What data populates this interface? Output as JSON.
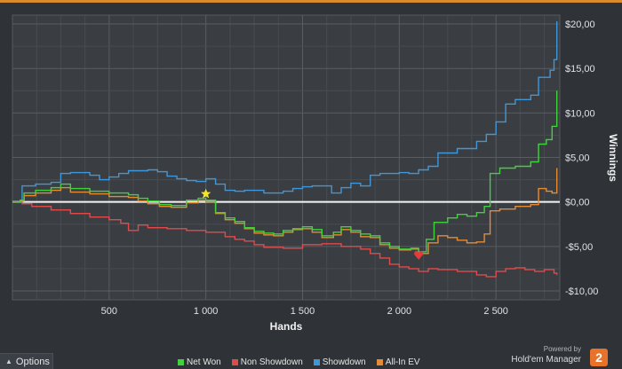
{
  "chart_data": {
    "type": "line",
    "xlabel": "Hands",
    "ylabel": "Winnings",
    "xlim": [
      0,
      2830
    ],
    "ylim": [
      -11,
      21
    ],
    "x_ticks": [
      500,
      1000,
      1500,
      2000,
      2500
    ],
    "x_tick_labels": [
      "500",
      "1 000",
      "1 500",
      "2 000",
      "2 500"
    ],
    "y_ticks": [
      20,
      15,
      10,
      5,
      0,
      -5,
      -10
    ],
    "y_tick_labels": [
      "$20,00",
      "$15,00",
      "$10,00",
      "$5,00",
      "$0,00",
      "-$5,00",
      "-$10,00"
    ],
    "grid": true,
    "series": [
      {
        "name": "Net Won",
        "color": "#3fd23a",
        "points": [
          [
            0,
            0
          ],
          [
            40,
            0.2
          ],
          [
            60,
            1.0
          ],
          [
            120,
            1.3
          ],
          [
            200,
            1.6
          ],
          [
            250,
            2.0
          ],
          [
            300,
            1.5
          ],
          [
            400,
            1.2
          ],
          [
            500,
            1.0
          ],
          [
            600,
            0.8
          ],
          [
            650,
            0.4
          ],
          [
            700,
            0.1
          ],
          [
            760,
            -0.3
          ],
          [
            820,
            -0.4
          ],
          [
            900,
            0.2
          ],
          [
            960,
            0.4
          ],
          [
            1000,
            0.2
          ],
          [
            1050,
            -1.2
          ],
          [
            1100,
            -1.8
          ],
          [
            1150,
            -2.2
          ],
          [
            1200,
            -2.9
          ],
          [
            1250,
            -3.3
          ],
          [
            1300,
            -3.5
          ],
          [
            1350,
            -3.6
          ],
          [
            1400,
            -3.2
          ],
          [
            1450,
            -3.0
          ],
          [
            1500,
            -2.8
          ],
          [
            1550,
            -3.1
          ],
          [
            1600,
            -3.8
          ],
          [
            1660,
            -3.4
          ],
          [
            1700,
            -2.8
          ],
          [
            1750,
            -3.2
          ],
          [
            1800,
            -3.6
          ],
          [
            1850,
            -3.8
          ],
          [
            1900,
            -4.6
          ],
          [
            1950,
            -5.0
          ],
          [
            2000,
            -5.3
          ],
          [
            2060,
            -5.2
          ],
          [
            2100,
            -5.6
          ],
          [
            2140,
            -4.2
          ],
          [
            2180,
            -2.3
          ],
          [
            2250,
            -1.8
          ],
          [
            2300,
            -1.4
          ],
          [
            2350,
            -1.6
          ],
          [
            2400,
            -1.2
          ],
          [
            2440,
            -0.5
          ],
          [
            2470,
            3.2
          ],
          [
            2520,
            3.8
          ],
          [
            2600,
            4.0
          ],
          [
            2680,
            4.5
          ],
          [
            2720,
            6.5
          ],
          [
            2760,
            7.0
          ],
          [
            2790,
            8.5
          ],
          [
            2815,
            12.5
          ]
        ]
      },
      {
        "name": "Non Showdown",
        "color": "#e24a4a",
        "points": [
          [
            0,
            0
          ],
          [
            50,
            -0.2
          ],
          [
            100,
            -0.5
          ],
          [
            200,
            -0.9
          ],
          [
            300,
            -1.3
          ],
          [
            400,
            -1.7
          ],
          [
            500,
            -2.0
          ],
          [
            560,
            -2.4
          ],
          [
            600,
            -3.2
          ],
          [
            650,
            -2.6
          ],
          [
            700,
            -2.9
          ],
          [
            800,
            -3.0
          ],
          [
            900,
            -3.2
          ],
          [
            1000,
            -3.4
          ],
          [
            1100,
            -3.9
          ],
          [
            1150,
            -4.2
          ],
          [
            1200,
            -4.4
          ],
          [
            1250,
            -4.8
          ],
          [
            1300,
            -5.1
          ],
          [
            1400,
            -5.2
          ],
          [
            1500,
            -4.8
          ],
          [
            1600,
            -4.7
          ],
          [
            1700,
            -5.0
          ],
          [
            1800,
            -5.3
          ],
          [
            1850,
            -5.8
          ],
          [
            1900,
            -6.3
          ],
          [
            1950,
            -7.0
          ],
          [
            2000,
            -7.3
          ],
          [
            2050,
            -7.5
          ],
          [
            2100,
            -7.8
          ],
          [
            2150,
            -7.5
          ],
          [
            2200,
            -7.6
          ],
          [
            2300,
            -7.8
          ],
          [
            2400,
            -8.2
          ],
          [
            2450,
            -8.4
          ],
          [
            2500,
            -7.8
          ],
          [
            2550,
            -7.5
          ],
          [
            2600,
            -7.4
          ],
          [
            2650,
            -7.6
          ],
          [
            2700,
            -7.8
          ],
          [
            2750,
            -7.6
          ],
          [
            2800,
            -8.0
          ],
          [
            2815,
            -8.2
          ]
        ]
      },
      {
        "name": "Showdown",
        "color": "#3f96d8",
        "points": [
          [
            0,
            0
          ],
          [
            50,
            1.8
          ],
          [
            120,
            2.0
          ],
          [
            200,
            2.2
          ],
          [
            250,
            3.2
          ],
          [
            300,
            3.3
          ],
          [
            400,
            3.0
          ],
          [
            450,
            2.5
          ],
          [
            500,
            2.8
          ],
          [
            550,
            3.2
          ],
          [
            600,
            3.5
          ],
          [
            700,
            3.6
          ],
          [
            750,
            3.4
          ],
          [
            800,
            2.9
          ],
          [
            850,
            2.6
          ],
          [
            900,
            2.4
          ],
          [
            950,
            2.3
          ],
          [
            1000,
            2.6
          ],
          [
            1050,
            2.0
          ],
          [
            1100,
            1.3
          ],
          [
            1150,
            1.2
          ],
          [
            1200,
            1.3
          ],
          [
            1300,
            1.0
          ],
          [
            1400,
            1.2
          ],
          [
            1450,
            1.5
          ],
          [
            1500,
            1.7
          ],
          [
            1550,
            1.8
          ],
          [
            1600,
            1.8
          ],
          [
            1650,
            1.0
          ],
          [
            1700,
            1.6
          ],
          [
            1750,
            2.1
          ],
          [
            1800,
            1.8
          ],
          [
            1850,
            3.0
          ],
          [
            1900,
            3.2
          ],
          [
            2000,
            3.3
          ],
          [
            2050,
            3.2
          ],
          [
            2100,
            3.6
          ],
          [
            2150,
            4.0
          ],
          [
            2200,
            5.5
          ],
          [
            2300,
            6.0
          ],
          [
            2400,
            6.8
          ],
          [
            2450,
            7.6
          ],
          [
            2500,
            9.0
          ],
          [
            2550,
            11.0
          ],
          [
            2600,
            11.5
          ],
          [
            2680,
            12.0
          ],
          [
            2720,
            14.0
          ],
          [
            2780,
            14.8
          ],
          [
            2800,
            16.0
          ],
          [
            2815,
            20.3
          ]
        ]
      },
      {
        "name": "All-In EV",
        "color": "#e68b32",
        "points": [
          [
            0,
            0
          ],
          [
            40,
            0.1
          ],
          [
            60,
            0.7
          ],
          [
            120,
            1.0
          ],
          [
            200,
            1.3
          ],
          [
            250,
            1.6
          ],
          [
            300,
            1.1
          ],
          [
            400,
            0.9
          ],
          [
            500,
            0.6
          ],
          [
            600,
            0.5
          ],
          [
            650,
            0.1
          ],
          [
            700,
            -0.2
          ],
          [
            760,
            -0.5
          ],
          [
            820,
            -0.6
          ],
          [
            900,
            -0.1
          ],
          [
            960,
            0.2
          ],
          [
            1000,
            0
          ],
          [
            1050,
            -1.3
          ],
          [
            1100,
            -2.0
          ],
          [
            1150,
            -2.4
          ],
          [
            1200,
            -3.0
          ],
          [
            1250,
            -3.5
          ],
          [
            1300,
            -3.7
          ],
          [
            1350,
            -3.8
          ],
          [
            1400,
            -3.4
          ],
          [
            1450,
            -3.1
          ],
          [
            1500,
            -3.0
          ],
          [
            1550,
            -3.4
          ],
          [
            1600,
            -4.0
          ],
          [
            1660,
            -3.7
          ],
          [
            1700,
            -3.1
          ],
          [
            1750,
            -3.4
          ],
          [
            1800,
            -3.9
          ],
          [
            1850,
            -4.0
          ],
          [
            1900,
            -4.8
          ],
          [
            1950,
            -5.2
          ],
          [
            2000,
            -5.4
          ],
          [
            2060,
            -5.3
          ],
          [
            2100,
            -5.8
          ],
          [
            2150,
            -4.6
          ],
          [
            2200,
            -3.8
          ],
          [
            2250,
            -4.0
          ],
          [
            2300,
            -4.3
          ],
          [
            2350,
            -4.6
          ],
          [
            2400,
            -4.5
          ],
          [
            2440,
            -3.6
          ],
          [
            2470,
            -1.0
          ],
          [
            2520,
            -0.8
          ],
          [
            2600,
            -0.5
          ],
          [
            2680,
            -0.3
          ],
          [
            2720,
            1.5
          ],
          [
            2760,
            1.2
          ],
          [
            2790,
            1.0
          ],
          [
            2815,
            3.8
          ]
        ]
      }
    ],
    "markers": [
      {
        "name": "max-star",
        "x": 1000,
        "y": 0.9,
        "color": "#f2e52a"
      },
      {
        "name": "min-heart",
        "x": 2100,
        "y": -6.0,
        "color": "#e23b3b"
      }
    ]
  },
  "legend": [
    {
      "label": "Net Won",
      "color": "#3fd23a"
    },
    {
      "label": "Non Showdown",
      "color": "#e24a4a"
    },
    {
      "label": "Showdown",
      "color": "#3f96d8"
    },
    {
      "label": "All-In EV",
      "color": "#e68b32"
    }
  ],
  "options_label": "Options",
  "brand": {
    "powered": "Powered by",
    "name": "Hold'em Manager",
    "logo": "2"
  }
}
